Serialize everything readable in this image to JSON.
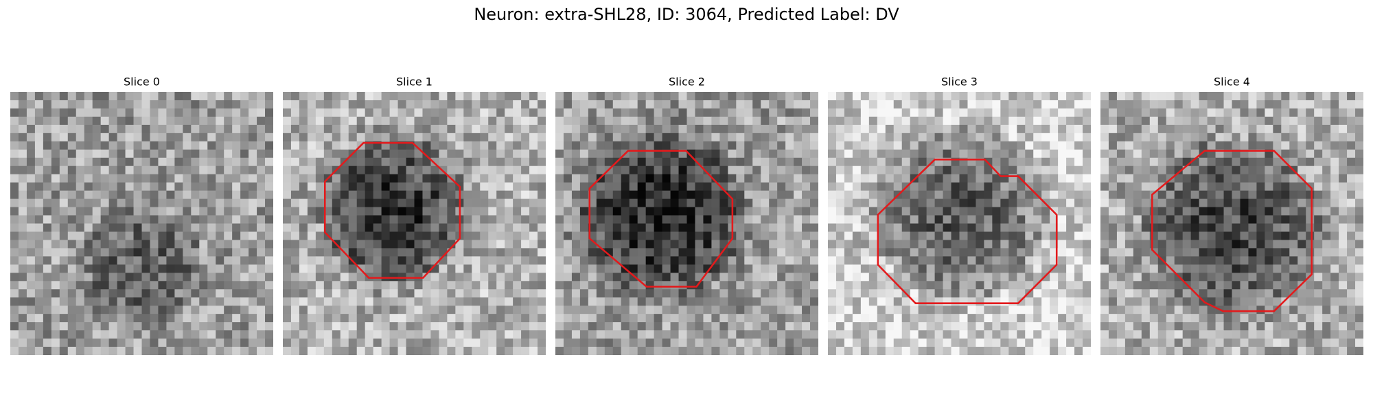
{
  "title": "Neuron: extra-SHL28, ID: 3064, Predicted Label: DV",
  "panels": [
    {
      "title": "Slice 0"
    },
    {
      "title": "Slice 1"
    },
    {
      "title": "Slice 2"
    },
    {
      "title": "Slice 3"
    },
    {
      "title": "Slice 4"
    }
  ]
}
